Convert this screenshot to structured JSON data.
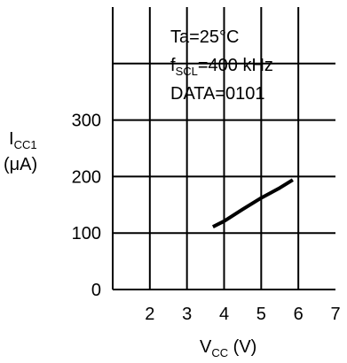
{
  "chart_data": {
    "type": "line",
    "x_axis": {
      "label_main": "V",
      "label_sub": "CC",
      "label_tail": " (V)",
      "ticks": [
        2,
        3,
        4,
        5,
        6,
        7
      ],
      "range": [
        1,
        7
      ]
    },
    "y_axis": {
      "label_main": "I",
      "label_sub": "CC1",
      "unit": "(μA)",
      "ticks": [
        0,
        100,
        200,
        300
      ],
      "range": [
        0,
        500
      ]
    },
    "grid": true,
    "annotations": {
      "line1": "Ta=25°C",
      "line2_main": "f",
      "line2_sub": "SCL",
      "line2_tail": "=400 kHz",
      "line3": "DATA=0101"
    },
    "series": [
      {
        "x": [
          3.7,
          4.0,
          4.5,
          5.0,
          5.5,
          5.85
        ],
        "y": [
          111,
          121,
          142,
          162,
          180,
          194
        ]
      }
    ]
  }
}
